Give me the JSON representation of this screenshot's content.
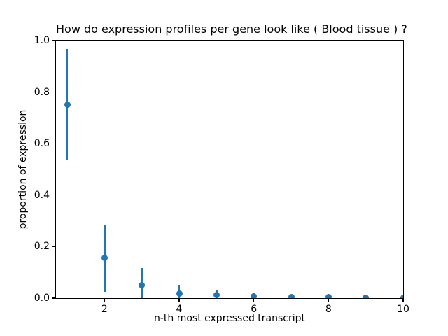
{
  "chart_data": {
    "type": "scatter",
    "title": "How do expression profiles per gene look like ( Blood tissue ) ?",
    "xlabel": "n-th most expressed transcript",
    "ylabel": "proportion of expression",
    "x": [
      1,
      2,
      3,
      4,
      5,
      6,
      7,
      8,
      9,
      10
    ],
    "y": [
      0.752,
      0.155,
      0.05,
      0.017,
      0.011,
      0.007,
      0.005,
      0.003,
      0.002,
      0.001
    ],
    "yerr": [
      0.215,
      0.131,
      0.066,
      0.034,
      0.021,
      0.012,
      0.008,
      0.005,
      0.003,
      0.002
    ],
    "xlim": [
      0.7,
      10.0
    ],
    "ylim": [
      0.0,
      1.0
    ],
    "xticks": {
      "values": [
        2,
        4,
        6,
        8,
        10
      ],
      "labels": [
        "2",
        "4",
        "6",
        "8",
        "10"
      ]
    },
    "yticks": {
      "values": [
        0.0,
        0.2,
        0.4,
        0.6,
        0.8,
        1.0
      ],
      "labels": [
        "0.0",
        "0.2",
        "0.4",
        "0.6",
        "0.8",
        "1.0"
      ]
    },
    "grid": false,
    "legend": "none",
    "marker": "circle",
    "marker_color": "#1f77b4",
    "errorbar_color": "#1f77b4",
    "axes_color": "#000000",
    "background_color": "#ffffff"
  }
}
